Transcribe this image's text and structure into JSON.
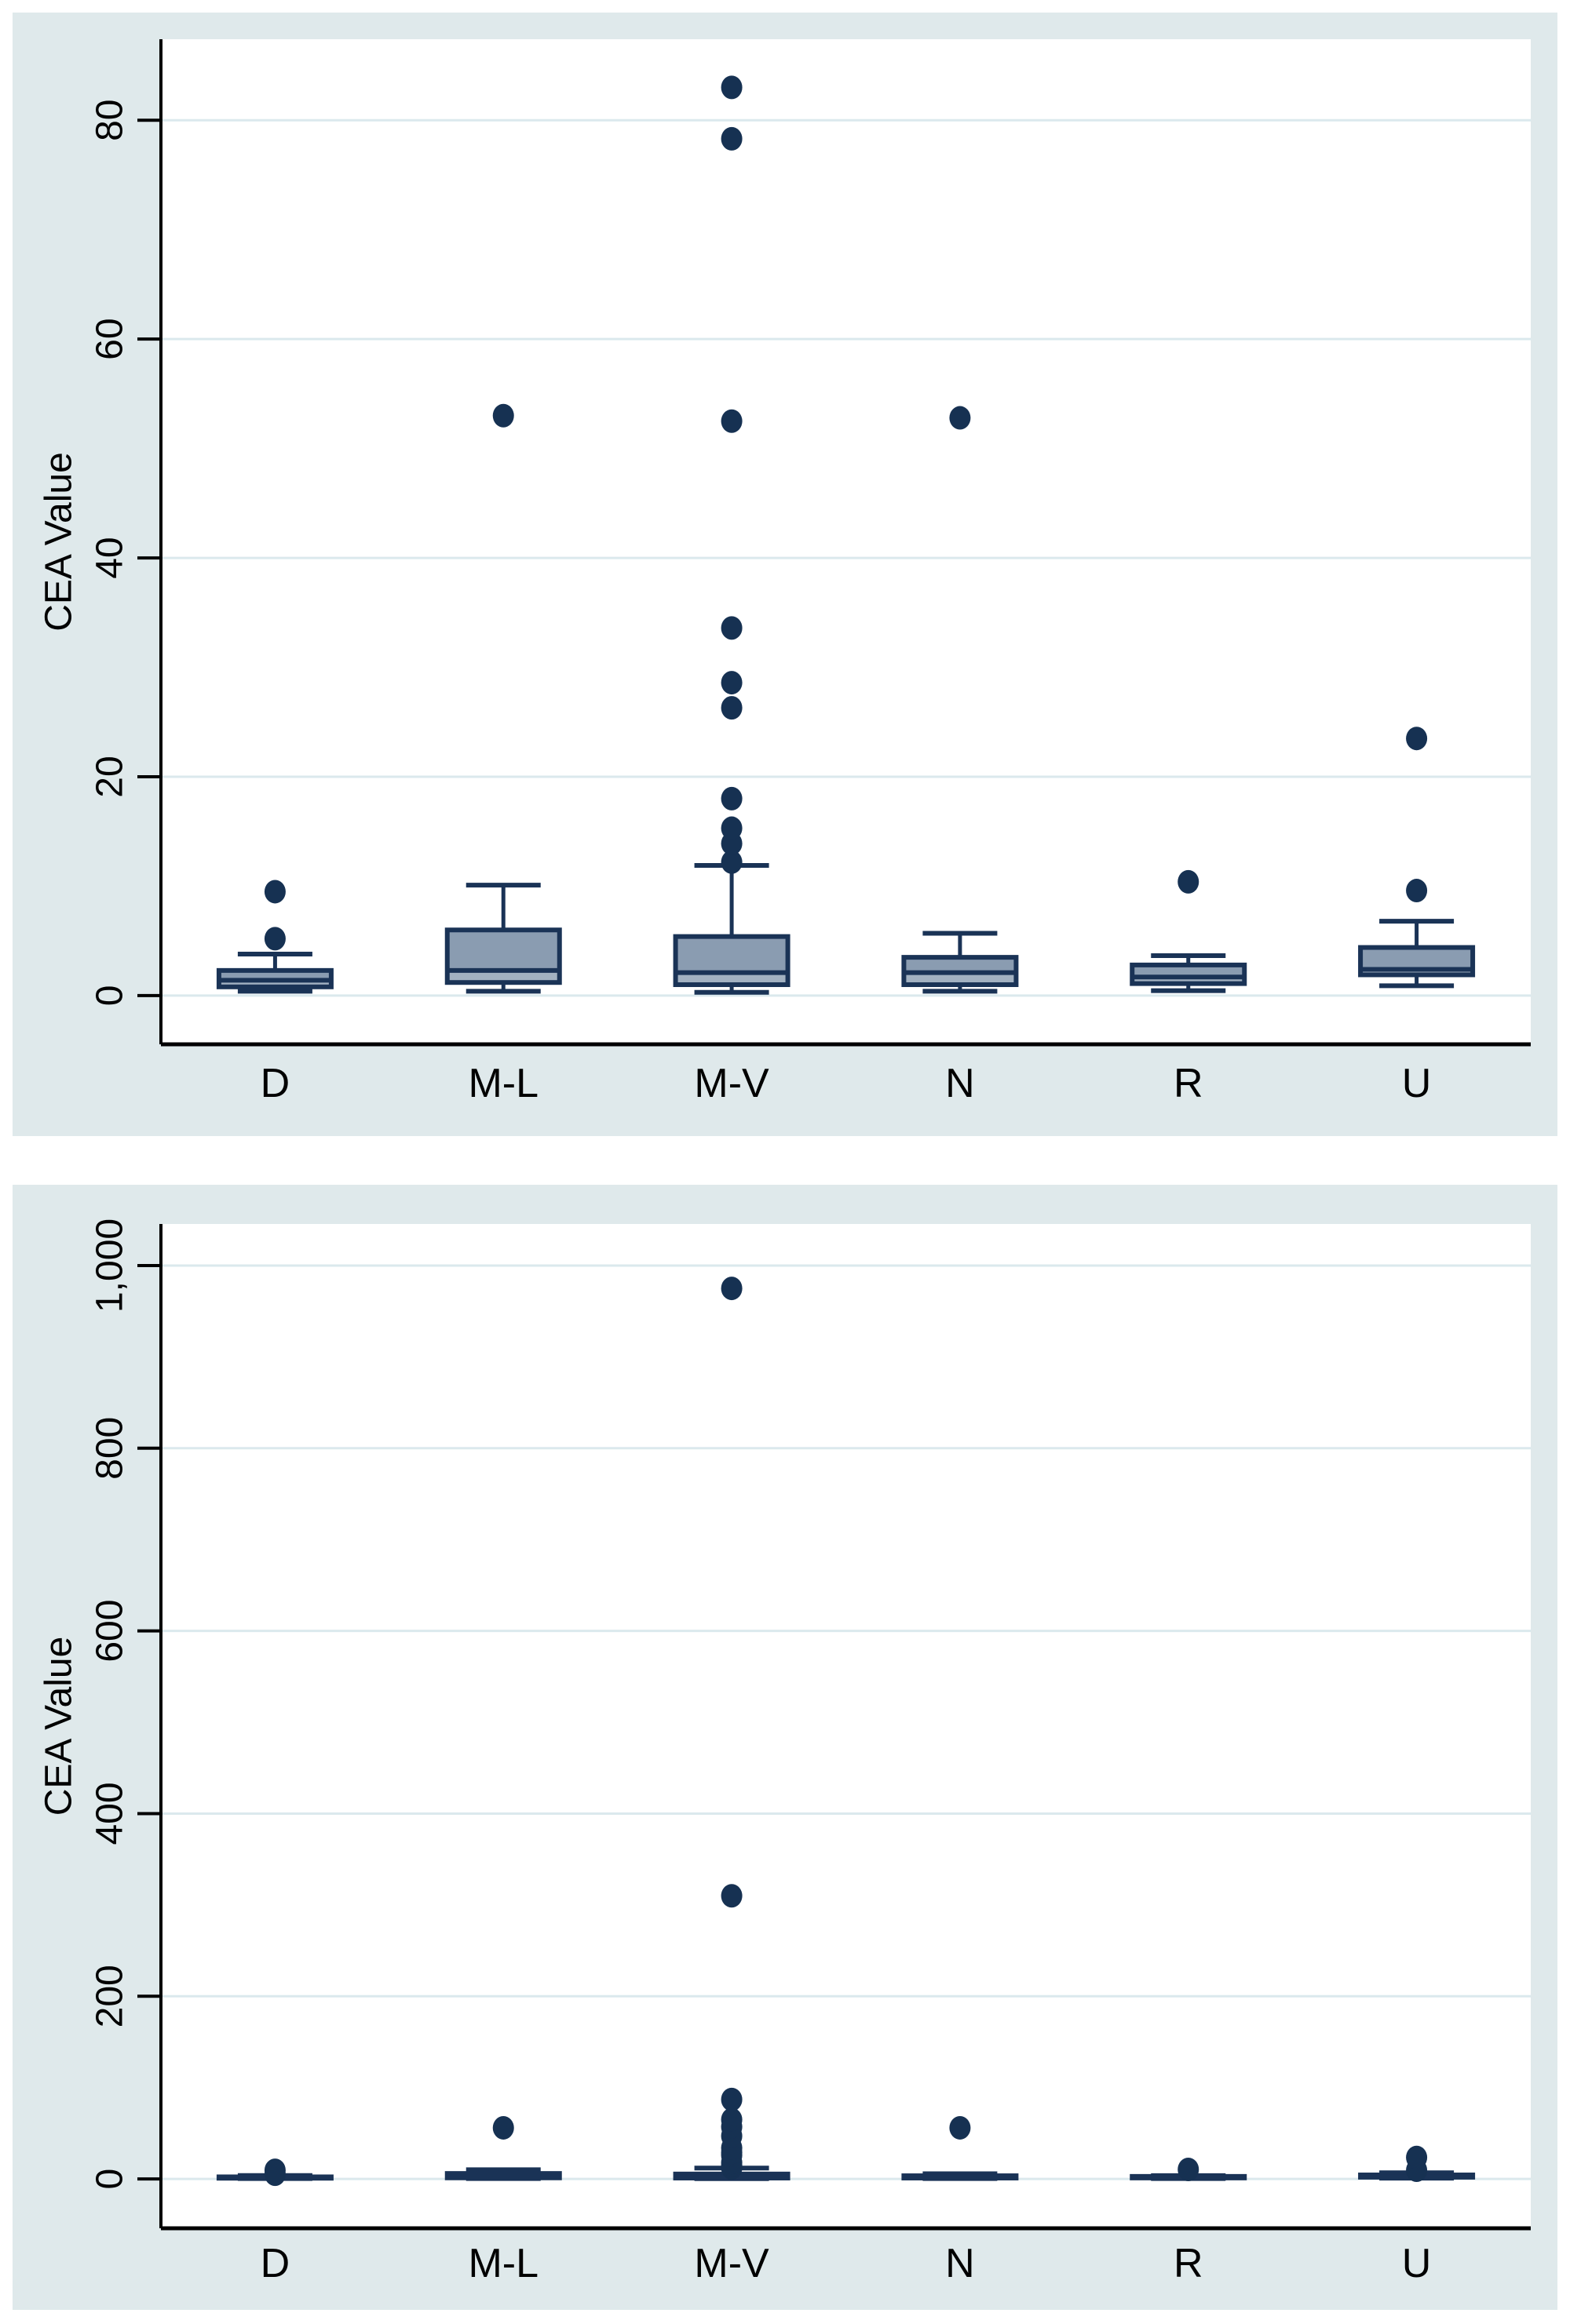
{
  "figure": {
    "description": "Two stacked Stata-style box plots of CEA Value by tumor location group",
    "panel_background": "#dfe9eb",
    "plot_background": "#ffffff"
  },
  "colors": {
    "panel_bg": "#dfe9eb",
    "plot_bg": "#ffffff",
    "gridline": "#dbe9ed",
    "axis_line": "#000000",
    "tick_text": "#000000",
    "box_fill": "#8a9cb1",
    "box_fill_light": "#a2b1c1",
    "box_border": "#1a3356",
    "median_line": "#1a3356",
    "whisker": "#1a3356",
    "outlier_dot": "#163152"
  },
  "chart_data": [
    {
      "type": "box",
      "panel": "top",
      "title": "",
      "xlabel": "",
      "ylabel": "CEA Value",
      "categories": [
        "D",
        "M-L",
        "M-V",
        "N",
        "R",
        "U"
      ],
      "y_ticks": [
        {
          "value": 0,
          "label": "0"
        },
        {
          "value": 20,
          "label": "20"
        },
        {
          "value": 40,
          "label": "40"
        },
        {
          "value": 60,
          "label": "60"
        },
        {
          "value": 80,
          "label": "80"
        }
      ],
      "ylim": [
        -4.45,
        87.4
      ],
      "grid": true,
      "legend": "none",
      "groups": [
        {
          "category": "D",
          "whisker_low": 0.4,
          "q1": 0.8,
          "median": 1.4,
          "q3": 2.3,
          "whisker_high": 3.8,
          "outliers": [
            5.2,
            9.5
          ]
        },
        {
          "category": "M-L",
          "whisker_low": 0.4,
          "q1": 1.2,
          "median": 2.3,
          "q3": 6.0,
          "whisker_high": 10.1,
          "outliers": [
            53
          ]
        },
        {
          "category": "M-V",
          "whisker_low": 0.3,
          "q1": 1.0,
          "median": 2.1,
          "q3": 5.4,
          "whisker_high": 11.9,
          "outliers": [
            12.2,
            13.9,
            15.3,
            18.0,
            26.3,
            28.6,
            33.6,
            52.5,
            78.3,
            83
          ]
        },
        {
          "category": "N",
          "whisker_low": 0.4,
          "q1": 1.0,
          "median": 2.1,
          "q3": 3.5,
          "whisker_high": 5.7,
          "outliers": [
            52.8
          ]
        },
        {
          "category": "R",
          "whisker_low": 0.45,
          "q1": 1.1,
          "median": 1.7,
          "q3": 2.8,
          "whisker_high": 3.65,
          "outliers": [
            10.4
          ]
        },
        {
          "category": "U",
          "whisker_low": 0.9,
          "q1": 1.9,
          "median": 2.4,
          "q3": 4.4,
          "whisker_high": 6.8,
          "outliers": [
            9.6,
            23.5
          ]
        }
      ]
    },
    {
      "type": "box",
      "panel": "bottom",
      "title": "",
      "xlabel": "",
      "ylabel": "CEA Value",
      "categories": [
        "D",
        "M-L",
        "M-V",
        "N",
        "R",
        "U"
      ],
      "y_ticks": [
        {
          "value": 0,
          "label": "0"
        },
        {
          "value": 200,
          "label": "200"
        },
        {
          "value": 400,
          "label": "400"
        },
        {
          "value": 600,
          "label": "600"
        },
        {
          "value": 800,
          "label": "800"
        },
        {
          "value": 1000,
          "label": "1,000"
        }
      ],
      "ylim": [
        -54,
        1045.5
      ],
      "grid": true,
      "legend": "none",
      "groups": [
        {
          "category": "D",
          "whisker_low": 0.4,
          "q1": 0.8,
          "median": 1.4,
          "q3": 2.3,
          "whisker_high": 3.8,
          "outliers": [
            5.2,
            9.5
          ]
        },
        {
          "category": "M-L",
          "whisker_low": 0.4,
          "q1": 1.2,
          "median": 2.3,
          "q3": 6.0,
          "whisker_high": 10.1,
          "outliers": [
            56
          ]
        },
        {
          "category": "M-V",
          "whisker_low": 0.3,
          "q1": 1.0,
          "median": 2.1,
          "q3": 5.4,
          "whisker_high": 11.9,
          "outliers": [
            12,
            15,
            18,
            26,
            29,
            34,
            47,
            57,
            65,
            87,
            310,
            975
          ]
        },
        {
          "category": "N",
          "whisker_low": 0.4,
          "q1": 1.0,
          "median": 2.1,
          "q3": 3.5,
          "whisker_high": 5.7,
          "outliers": [
            56
          ]
        },
        {
          "category": "R",
          "whisker_low": 0.45,
          "q1": 1.1,
          "median": 1.7,
          "q3": 2.8,
          "whisker_high": 3.65,
          "outliers": [
            10.4
          ]
        },
        {
          "category": "U",
          "whisker_low": 0.9,
          "q1": 1.9,
          "median": 2.4,
          "q3": 4.4,
          "whisker_high": 6.8,
          "outliers": [
            9.6,
            23.5
          ]
        }
      ]
    }
  ]
}
